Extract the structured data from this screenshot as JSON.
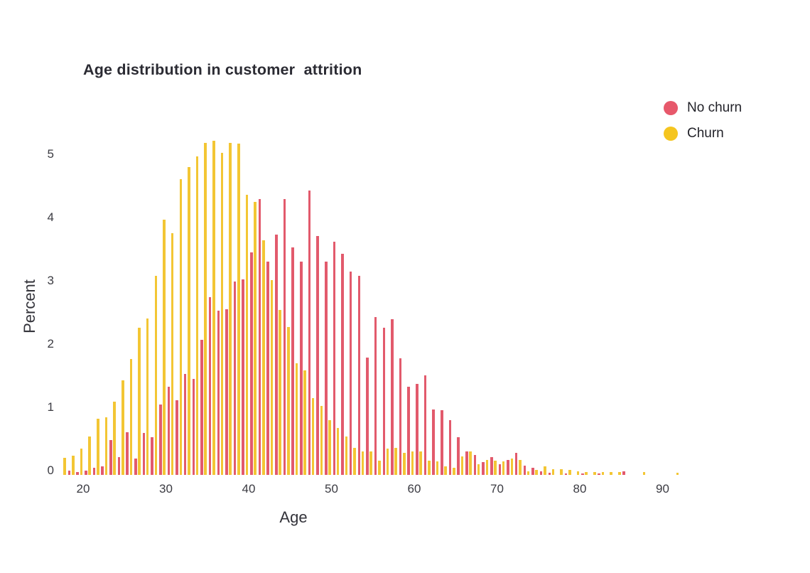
{
  "title": "Age distribution in customer  attrition",
  "legend": {
    "items": [
      {
        "label": "No churn",
        "color": "#e7586b"
      },
      {
        "label": "Churn",
        "color": "#f5c51f"
      }
    ]
  },
  "colors": {
    "no_churn_bar": "#e25a6c",
    "churn_bar": "#f3c634",
    "text_dark": "#2b2b33",
    "text_tick": "#3b3b42",
    "background": "#ffffff"
  },
  "chart_data": {
    "type": "bar",
    "title": "Age distribution in customer  attrition",
    "xlabel": "Age",
    "ylabel": "Percent",
    "x_ticks": [
      20,
      30,
      40,
      50,
      60,
      70,
      80,
      90
    ],
    "y_ticks": [
      0,
      1,
      2,
      3,
      4,
      5
    ],
    "xlim": [
      17,
      95
    ],
    "ylim": [
      0,
      5.4
    ],
    "grid": false,
    "legend_position": "top-right",
    "ages": [
      18,
      19,
      20,
      21,
      22,
      23,
      24,
      25,
      26,
      27,
      28,
      29,
      30,
      31,
      32,
      33,
      34,
      35,
      36,
      37,
      38,
      39,
      40,
      41,
      42,
      43,
      44,
      45,
      46,
      47,
      48,
      49,
      50,
      51,
      52,
      53,
      54,
      55,
      56,
      57,
      58,
      59,
      60,
      61,
      62,
      63,
      64,
      65,
      66,
      67,
      68,
      69,
      70,
      71,
      72,
      73,
      74,
      75,
      76,
      77,
      78,
      79,
      80,
      81,
      82,
      83,
      84,
      85,
      86,
      87,
      88,
      89,
      90,
      91,
      92,
      93
    ],
    "series": [
      {
        "name": "No churn",
        "color": "#e25a6c",
        "values": [
          0.07,
          0.04,
          0.07,
          0.11,
          0.13,
          0.55,
          0.28,
          0.67,
          0.26,
          0.66,
          0.6,
          1.11,
          1.39,
          1.18,
          1.6,
          1.52,
          2.13,
          2.81,
          2.6,
          2.62,
          3.06,
          3.09,
          3.52,
          4.36,
          3.37,
          3.8,
          4.36,
          3.59,
          3.37,
          4.49,
          3.77,
          3.37,
          3.69,
          3.5,
          3.21,
          3.15,
          1.85,
          2.5,
          2.33,
          2.46,
          1.84,
          1.39,
          1.44,
          1.57,
          1.03,
          1.02,
          0.86,
          0.59,
          0.37,
          0.32,
          0.2,
          0.28,
          0.17,
          0.24,
          0.35,
          0.15,
          0.11,
          0.06,
          0.03,
          0,
          0.02,
          0,
          0.02,
          0,
          0.02,
          0,
          0,
          0.06,
          0,
          0,
          0,
          0,
          0,
          0,
          0,
          0
        ]
      },
      {
        "name": "Churn",
        "color": "#f3c634",
        "values": [
          0.27,
          0.3,
          0.42,
          0.61,
          0.89,
          0.91,
          1.16,
          1.49,
          1.83,
          2.33,
          2.47,
          3.15,
          4.03,
          3.82,
          4.67,
          4.87,
          5.03,
          5.25,
          5.28,
          5.09,
          5.25,
          5.24,
          4.43,
          4.32,
          3.71,
          3.08,
          2.61,
          2.34,
          1.76,
          1.65,
          1.21,
          1.09,
          0.86,
          0.74,
          0.61,
          0.43,
          0.37,
          0.37,
          0.23,
          0.42,
          0.43,
          0.35,
          0.37,
          0.37,
          0.23,
          0.21,
          0.13,
          0.11,
          0.29,
          0.37,
          0.17,
          0.24,
          0.23,
          0.21,
          0.26,
          0.24,
          0.06,
          0.08,
          0.13,
          0.09,
          0.09,
          0.08,
          0.06,
          0.05,
          0.05,
          0.05,
          0.04,
          0.04,
          0,
          0,
          0.04,
          0,
          0,
          0,
          0.03,
          0
        ]
      }
    ]
  }
}
